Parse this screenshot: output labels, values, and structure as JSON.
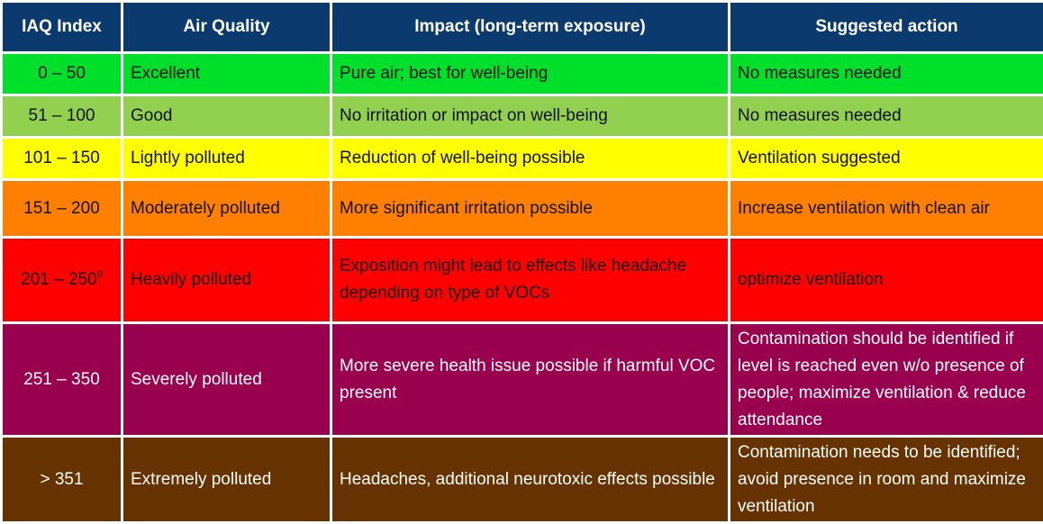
{
  "headers": [
    "IAQ Index",
    "Air Quality",
    "Impact (long-term exposure)",
    "Suggested action"
  ],
  "rows": [
    {
      "index": "0 – 50",
      "quality": "Excellent",
      "impact": "Pure air; best for well-being",
      "action": "No measures needed",
      "color": "#00e02a"
    },
    {
      "index": "51 – 100",
      "quality": "Good",
      "impact": "No irritation or impact on well-being",
      "action": "No measures needed",
      "color": "#92d050"
    },
    {
      "index": "101 – 150",
      "quality": "Lightly polluted",
      "impact": "Reduction of well-being possible",
      "action": "Ventilation suggested",
      "color": "#ffff00"
    },
    {
      "index": "151 – 200",
      "quality": "Moderately polluted",
      "impact": "More significant irritation possible",
      "action": "Increase ventilation with clean air",
      "color": "#ff8000"
    },
    {
      "index": "201 – 250",
      "index_footnote": "9",
      "quality": "Heavily polluted",
      "impact": "Exposition might lead to effects like headache depending on type of VOCs",
      "action": "optimize ventilation",
      "color": "#ff0000"
    },
    {
      "index": "251 – 350",
      "quality": "Severely polluted",
      "impact": "More severe health issue possible if harmful VOC present",
      "action": "Contamination should be identified if level is reached even w/o presence of people; maximize ventilation & reduce attendance",
      "color": "#99004d"
    },
    {
      "index": "> 351",
      "quality": "Extremely polluted",
      "impact": "Headaches, additional neurotoxic effects possible",
      "action": "Contamination needs to be identified; avoid presence in room and maximize ventilation",
      "color": "#663300"
    }
  ]
}
